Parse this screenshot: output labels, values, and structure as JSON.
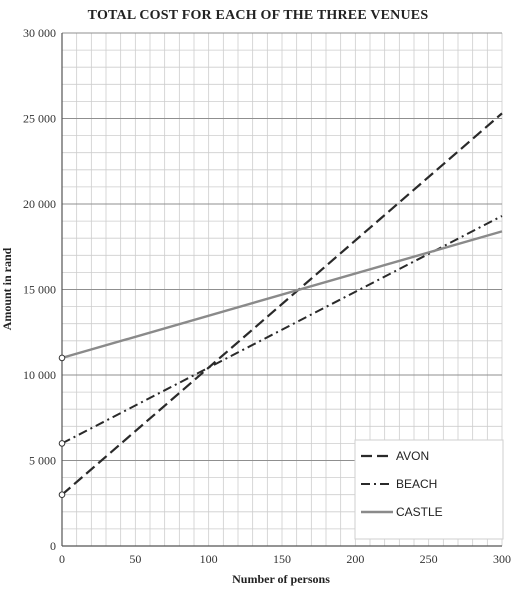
{
  "chart_data": {
    "type": "line",
    "title": "TOTAL COST FOR EACH OF THE THREE VENUES",
    "xlabel": "Number of persons",
    "ylabel": "Amount in rand",
    "xlim": [
      0,
      300
    ],
    "ylim": [
      0,
      30000
    ],
    "x_ticks": [
      0,
      50,
      100,
      150,
      200,
      250,
      300
    ],
    "x_tick_labels": [
      "0",
      "50",
      "100",
      "150",
      "200",
      "250",
      "300"
    ],
    "y_ticks": [
      0,
      5000,
      10000,
      15000,
      20000,
      25000,
      30000
    ],
    "y_tick_labels": [
      "0",
      "5 000",
      "10 000",
      "15 000",
      "20 000",
      "25 000",
      "30 000"
    ],
    "grid": true,
    "legend_position": "bottom-right",
    "series": [
      {
        "name": "AVON",
        "style": "dashed",
        "color": "#2a2a2a",
        "x": [
          0,
          300
        ],
        "y": [
          3000,
          25300
        ]
      },
      {
        "name": "BEACH",
        "style": "dash-dot",
        "color": "#2a2a2a",
        "x": [
          0,
          300
        ],
        "y": [
          6000,
          19300
        ]
      },
      {
        "name": "CASTLE",
        "style": "solid",
        "color": "#8a8a8a",
        "x": [
          0,
          300
        ],
        "y": [
          11000,
          18400
        ]
      }
    ],
    "open_markers": [
      {
        "x": 0,
        "y": 3000
      },
      {
        "x": 0,
        "y": 6000
      },
      {
        "x": 0,
        "y": 11000
      }
    ]
  }
}
